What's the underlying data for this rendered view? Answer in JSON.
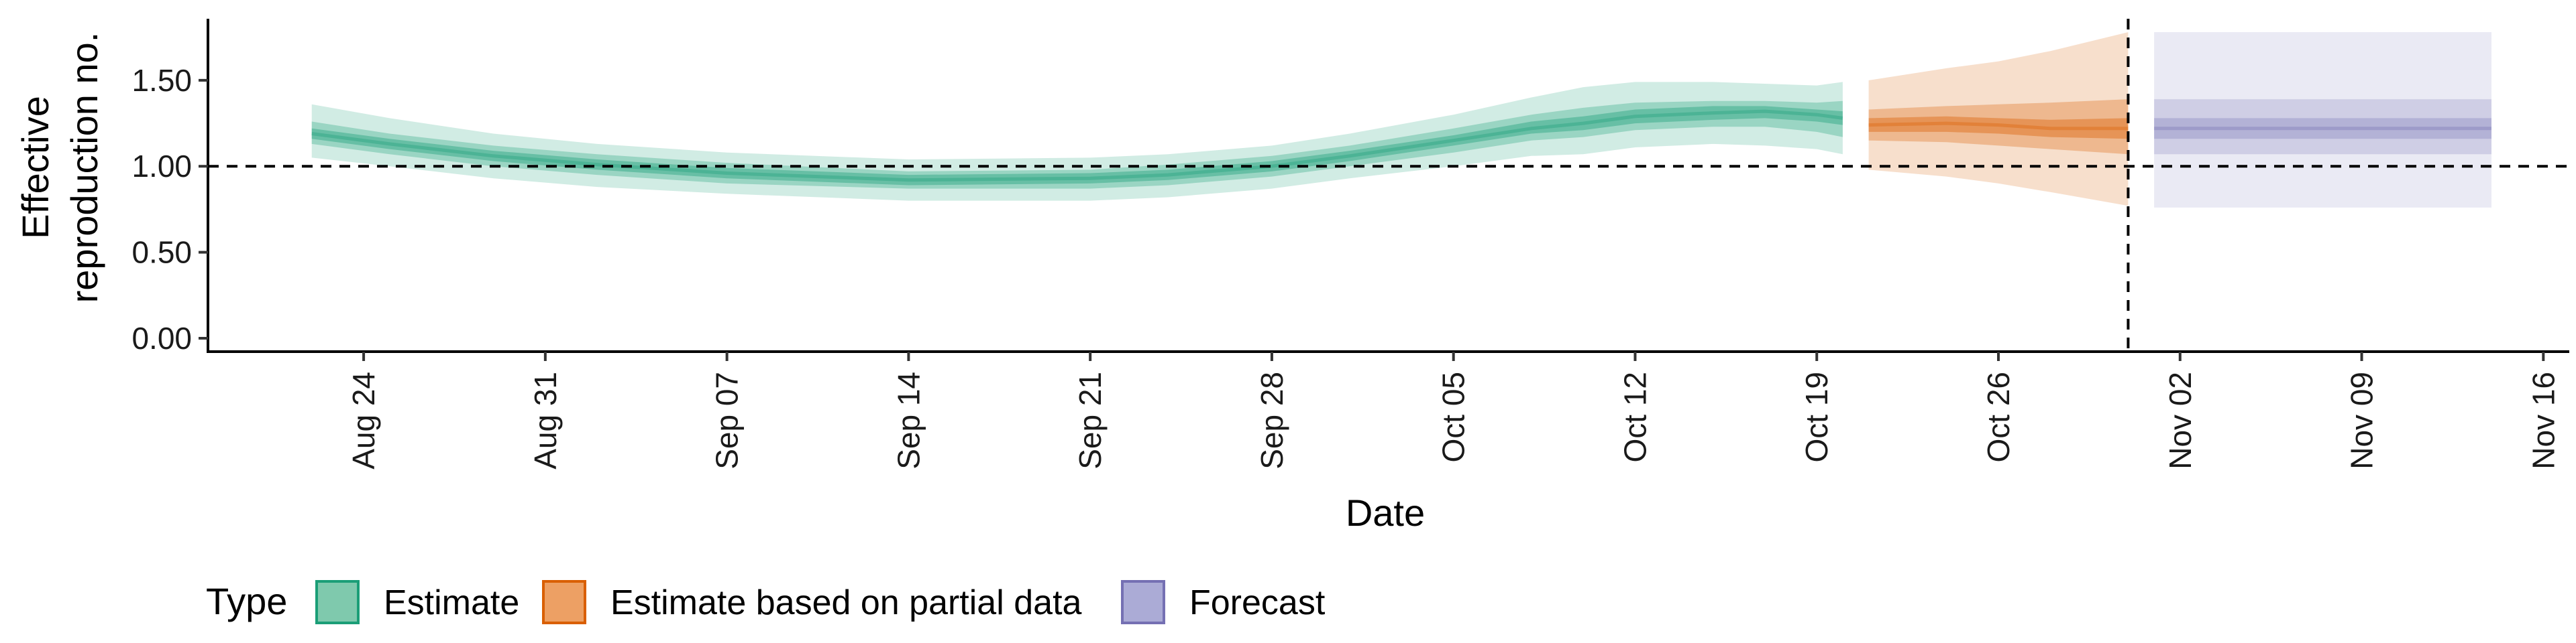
{
  "chart_data": {
    "type": "area",
    "xlabel": "Date",
    "ylabel_lines": [
      "Effective",
      "reproduction no."
    ],
    "ylim": [
      0,
      1.85
    ],
    "y_ticks": [
      {
        "value": 0.0,
        "label": "0.00"
      },
      {
        "value": 0.5,
        "label": "0.50"
      },
      {
        "value": 1.0,
        "label": "1.00"
      },
      {
        "value": 1.5,
        "label": "1.50"
      }
    ],
    "x_start": "2020-08-18",
    "x_end": "2020-11-17",
    "x_ticks": [
      {
        "date": "2020-08-24",
        "label": "Aug 24"
      },
      {
        "date": "2020-08-31",
        "label": "Aug 31"
      },
      {
        "date": "2020-09-07",
        "label": "Sep 07"
      },
      {
        "date": "2020-09-14",
        "label": "Sep 14"
      },
      {
        "date": "2020-09-21",
        "label": "Sep 21"
      },
      {
        "date": "2020-09-28",
        "label": "Sep 28"
      },
      {
        "date": "2020-10-05",
        "label": "Oct 05"
      },
      {
        "date": "2020-10-12",
        "label": "Oct 12"
      },
      {
        "date": "2020-10-19",
        "label": "Oct 19"
      },
      {
        "date": "2020-10-26",
        "label": "Oct 26"
      },
      {
        "date": "2020-11-02",
        "label": "Nov 02"
      },
      {
        "date": "2020-11-09",
        "label": "Nov 09"
      },
      {
        "date": "2020-11-16",
        "label": "Nov 16"
      }
    ],
    "reference_line_y": 1.0,
    "reference_line_date": "2020-10-31",
    "legend": {
      "title": "Type",
      "position": "bottom",
      "items": [
        {
          "label": "Estimate",
          "fill": "#7fc9ad",
          "stroke": "#1b9e77"
        },
        {
          "label": "Estimate based on partial data",
          "fill": "#eda064",
          "stroke": "#d95f02"
        },
        {
          "label": "Forecast",
          "fill": "#ababd6",
          "stroke": "#7570b3"
        }
      ]
    },
    "series": [
      {
        "name": "Estimate",
        "color": "#1b9e77",
        "points": [
          {
            "date": "2020-08-22",
            "median": 1.19,
            "lo20": 1.16,
            "hi20": 1.22,
            "lo50": 1.13,
            "hi50": 1.26,
            "lo90": 1.05,
            "hi90": 1.36
          },
          {
            "date": "2020-08-25",
            "median": 1.13,
            "lo20": 1.1,
            "hi20": 1.16,
            "lo50": 1.07,
            "hi50": 1.19,
            "lo90": 1.0,
            "hi90": 1.28
          },
          {
            "date": "2020-08-29",
            "median": 1.06,
            "lo20": 1.03,
            "hi20": 1.09,
            "lo50": 1.0,
            "hi50": 1.12,
            "lo90": 0.93,
            "hi90": 1.19
          },
          {
            "date": "2020-09-02",
            "median": 1.01,
            "lo20": 0.98,
            "hi20": 1.04,
            "lo50": 0.95,
            "hi50": 1.07,
            "lo90": 0.88,
            "hi90": 1.13
          },
          {
            "date": "2020-09-07",
            "median": 0.96,
            "lo20": 0.93,
            "hi20": 0.99,
            "lo50": 0.9,
            "hi50": 1.02,
            "lo90": 0.84,
            "hi90": 1.08
          },
          {
            "date": "2020-09-14",
            "median": 0.92,
            "lo20": 0.89,
            "hi20": 0.95,
            "lo50": 0.87,
            "hi50": 0.97,
            "lo90": 0.8,
            "hi90": 1.04
          },
          {
            "date": "2020-09-21",
            "median": 0.93,
            "lo20": 0.9,
            "hi20": 0.96,
            "lo50": 0.87,
            "hi50": 0.98,
            "lo90": 0.8,
            "hi90": 1.05
          },
          {
            "date": "2020-09-24",
            "median": 0.95,
            "lo20": 0.92,
            "hi20": 0.98,
            "lo50": 0.89,
            "hi50": 1.01,
            "lo90": 0.82,
            "hi90": 1.07
          },
          {
            "date": "2020-09-28",
            "median": 1.0,
            "lo20": 0.97,
            "hi20": 1.03,
            "lo50": 0.94,
            "hi50": 1.06,
            "lo90": 0.87,
            "hi90": 1.12
          },
          {
            "date": "2020-10-01",
            "median": 1.06,
            "lo20": 1.03,
            "hi20": 1.09,
            "lo50": 1.0,
            "hi50": 1.12,
            "lo90": 0.93,
            "hi90": 1.19
          },
          {
            "date": "2020-10-05",
            "median": 1.15,
            "lo20": 1.12,
            "hi20": 1.18,
            "lo50": 1.08,
            "hi50": 1.22,
            "lo90": 1.0,
            "hi90": 1.3
          },
          {
            "date": "2020-10-08",
            "median": 1.22,
            "lo20": 1.19,
            "hi20": 1.26,
            "lo50": 1.15,
            "hi50": 1.3,
            "lo90": 1.06,
            "hi90": 1.4
          },
          {
            "date": "2020-10-10",
            "median": 1.25,
            "lo20": 1.21,
            "hi20": 1.29,
            "lo50": 1.17,
            "hi50": 1.34,
            "lo90": 1.07,
            "hi90": 1.46
          },
          {
            "date": "2020-10-12",
            "median": 1.29,
            "lo20": 1.25,
            "hi20": 1.33,
            "lo50": 1.21,
            "hi50": 1.37,
            "lo90": 1.11,
            "hi90": 1.49
          },
          {
            "date": "2020-10-15",
            "median": 1.31,
            "lo20": 1.27,
            "hi20": 1.35,
            "lo50": 1.23,
            "hi50": 1.38,
            "lo90": 1.13,
            "hi90": 1.49
          },
          {
            "date": "2020-10-17",
            "median": 1.32,
            "lo20": 1.28,
            "hi20": 1.35,
            "lo50": 1.23,
            "hi50": 1.38,
            "lo90": 1.12,
            "hi90": 1.48
          },
          {
            "date": "2020-10-19",
            "median": 1.3,
            "lo20": 1.26,
            "hi20": 1.33,
            "lo50": 1.2,
            "hi50": 1.37,
            "lo90": 1.1,
            "hi90": 1.47
          },
          {
            "date": "2020-10-20",
            "median": 1.28,
            "lo20": 1.24,
            "hi20": 1.32,
            "lo50": 1.17,
            "hi50": 1.38,
            "lo90": 1.07,
            "hi90": 1.49
          }
        ]
      },
      {
        "name": "Estimate based on partial data",
        "color": "#d95f02",
        "points": [
          {
            "date": "2020-10-21",
            "median": 1.24,
            "lo20": 1.2,
            "hi20": 1.28,
            "lo50": 1.15,
            "hi50": 1.33,
            "lo90": 0.98,
            "hi90": 1.5
          },
          {
            "date": "2020-10-24",
            "median": 1.25,
            "lo20": 1.2,
            "hi20": 1.29,
            "lo50": 1.14,
            "hi50": 1.35,
            "lo90": 0.94,
            "hi90": 1.57
          },
          {
            "date": "2020-10-26",
            "median": 1.24,
            "lo20": 1.19,
            "hi20": 1.28,
            "lo50": 1.12,
            "hi50": 1.36,
            "lo90": 0.9,
            "hi90": 1.61
          },
          {
            "date": "2020-10-28",
            "median": 1.22,
            "lo20": 1.17,
            "hi20": 1.27,
            "lo50": 1.1,
            "hi50": 1.37,
            "lo90": 0.85,
            "hi90": 1.67
          },
          {
            "date": "2020-10-31",
            "median": 1.22,
            "lo20": 1.16,
            "hi20": 1.28,
            "lo50": 1.07,
            "hi50": 1.39,
            "lo90": 0.77,
            "hi90": 1.78
          }
        ]
      },
      {
        "name": "Forecast",
        "color": "#7570b3",
        "points": [
          {
            "date": "2020-11-01",
            "median": 1.22,
            "lo20": 1.16,
            "hi20": 1.28,
            "lo50": 1.07,
            "hi50": 1.39,
            "lo90": 0.76,
            "hi90": 1.78
          },
          {
            "date": "2020-11-14",
            "median": 1.22,
            "lo20": 1.16,
            "hi20": 1.28,
            "lo50": 1.07,
            "hi50": 1.39,
            "lo90": 0.76,
            "hi90": 1.78
          }
        ]
      }
    ]
  }
}
